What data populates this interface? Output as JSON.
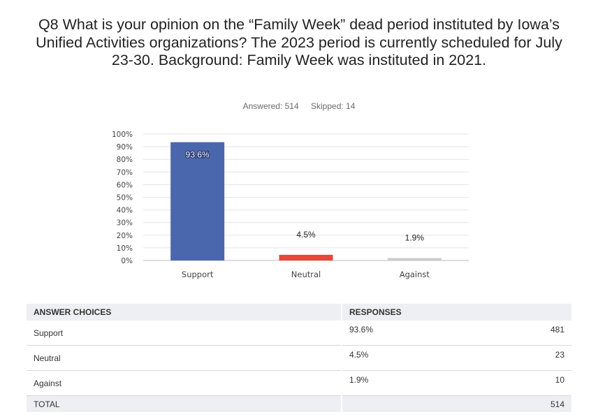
{
  "question": {
    "title": "Q8 What is your opinion on the “Family Week” dead period instituted by Iowa’s Unified Activities organizations? The 2023 period is currently scheduled for July 23-30. Background: Family Week was instituted in 2021.",
    "answered": "Answered: 514",
    "skipped": "Skipped: 14"
  },
  "chart_data": {
    "type": "bar",
    "categories": [
      "Support",
      "Neutral",
      "Against"
    ],
    "values": [
      93.6,
      4.5,
      1.9
    ],
    "data_labels": [
      "93.6%",
      "4.5%",
      "1.9%"
    ],
    "colors": [
      "#4a67ae",
      "#e8473a",
      "#cccccc"
    ],
    "ylim": [
      0,
      100
    ],
    "yticks": [
      "0%",
      "10%",
      "20%",
      "30%",
      "40%",
      "50%",
      "60%",
      "70%",
      "80%",
      "90%",
      "100%"
    ],
    "grid": true
  },
  "table": {
    "headers": {
      "choices": "ANSWER CHOICES",
      "responses": "RESPONSES"
    },
    "rows": [
      {
        "choice": "Support",
        "percent": "93.6%",
        "count": "481"
      },
      {
        "choice": "Neutral",
        "percent": "4.5%",
        "count": "23"
      },
      {
        "choice": "Against",
        "percent": "1.9%",
        "count": "10"
      }
    ],
    "total": {
      "label": "TOTAL",
      "count": "514"
    }
  }
}
